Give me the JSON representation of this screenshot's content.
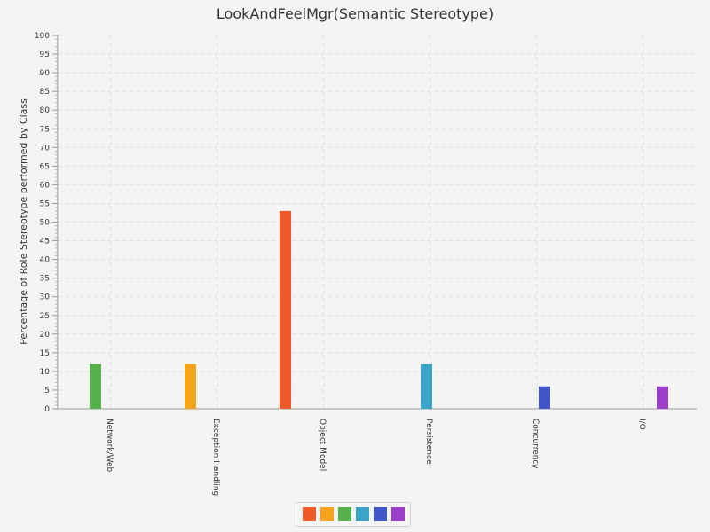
{
  "chart_data": {
    "type": "bar",
    "title": "LookAndFeelMgr(Semantic Stereotype)",
    "xlabel": "",
    "ylabel": "Percentage of Role Stereotype performed by Class",
    "ylim": [
      0,
      100
    ],
    "ytick_step": 5,
    "grid": true,
    "legend_position": "bottom",
    "categories": [
      "Network/Web",
      "Exception Handling",
      "Object Model",
      "Persistence",
      "Concurrency",
      "I/O"
    ],
    "series": [
      {
        "color": "#f05a28",
        "values": [
          0,
          0,
          53,
          0,
          0,
          0
        ]
      },
      {
        "color": "#f5a31a",
        "values": [
          0,
          12,
          0,
          0,
          0,
          0
        ]
      },
      {
        "color": "#56b04c",
        "values": [
          12,
          0,
          0,
          0,
          0,
          0
        ]
      },
      {
        "color": "#3aa5c8",
        "values": [
          0,
          0,
          0,
          12,
          0,
          0
        ]
      },
      {
        "color": "#3f55c8",
        "values": [
          0,
          0,
          0,
          0,
          6,
          0
        ]
      },
      {
        "color": "#9a40c8",
        "values": [
          0,
          0,
          0,
          0,
          0,
          6
        ]
      }
    ]
  }
}
